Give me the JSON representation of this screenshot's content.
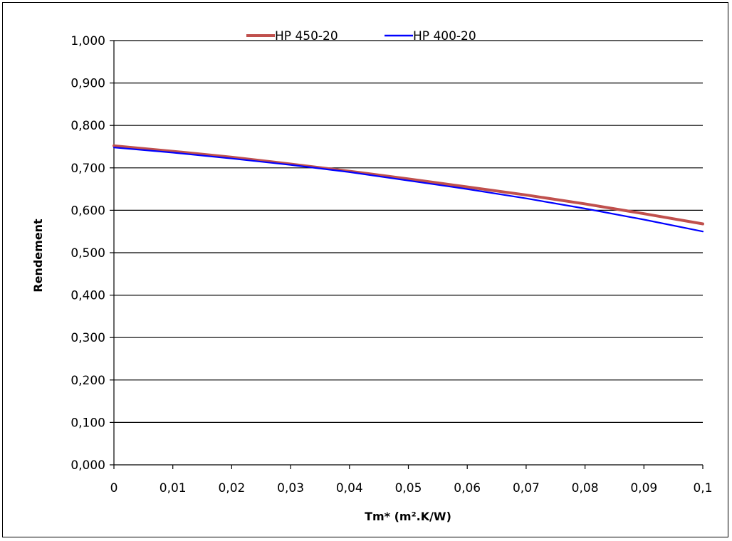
{
  "chart_data": {
    "type": "line",
    "title": "",
    "xlabel": "Tm* (m².K/W)",
    "ylabel": "Rendement",
    "xlim": [
      0,
      0.1
    ],
    "ylim": [
      0,
      1
    ],
    "x_ticks": [
      0,
      0.01,
      0.02,
      0.03,
      0.04,
      0.05,
      0.06,
      0.07,
      0.08,
      0.09,
      0.1
    ],
    "x_tick_labels": [
      "0",
      "0,01",
      "0,02",
      "0,03",
      "0,04",
      "0,05",
      "0,06",
      "0,07",
      "0,08",
      "0,09",
      "0,1"
    ],
    "y_ticks": [
      0,
      0.1,
      0.2,
      0.3,
      0.4,
      0.5,
      0.6,
      0.7,
      0.8,
      0.9,
      1
    ],
    "y_tick_labels": [
      "0,000",
      "0,100",
      "0,200",
      "0,300",
      "0,400",
      "0,500",
      "0,600",
      "0,700",
      "0,800",
      "0,900",
      "1,000"
    ],
    "grid": "horizontal",
    "legend_position": "top",
    "x": [
      0,
      0.01,
      0.02,
      0.03,
      0.04,
      0.05,
      0.06,
      0.07,
      0.08,
      0.09,
      0.1
    ],
    "series": [
      {
        "name": "HP 450-20",
        "color": "#C0504D",
        "values": [
          0.752,
          0.739,
          0.725,
          0.709,
          0.692,
          0.674,
          0.655,
          0.636,
          0.615,
          0.592,
          0.568
        ]
      },
      {
        "name": "HP 400-20",
        "color": "#0000FF",
        "values": [
          0.748,
          0.736,
          0.722,
          0.707,
          0.69,
          0.67,
          0.65,
          0.628,
          0.604,
          0.578,
          0.55
        ]
      }
    ]
  }
}
